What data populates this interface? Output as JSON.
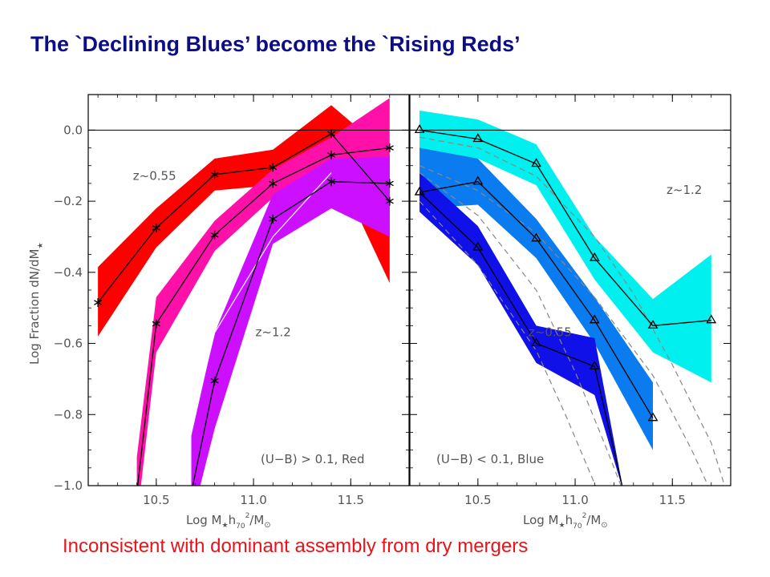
{
  "title": "The `Declining Blues’ become the `Rising Reds’",
  "caption": "Inconsistent with dominant assembly from dry mergers",
  "chart_data": [
    {
      "type": "line",
      "panel": "left",
      "panel_label": "(U−B) > 0.1, Red",
      "xlabel_parts": [
        "Log M",
        "★",
        "h",
        "70",
        "2",
        "/M",
        "⊙"
      ],
      "ylabel_parts": [
        "Log Fraction dN/dM",
        "★"
      ],
      "xlim": [
        10.15,
        11.8
      ],
      "ylim": [
        -1.0,
        0.1
      ],
      "xticks": [
        "10.5",
        "11.0",
        "11.5"
      ],
      "xtick_values": [
        10.5,
        11.0,
        11.5
      ],
      "yticks": [
        "0.0",
        "−0.2",
        "−0.4",
        "−0.6",
        "−0.8",
        "−1.0"
      ],
      "ytick_values": [
        0.0,
        -0.2,
        -0.4,
        -0.6,
        -0.8,
        -1.0
      ],
      "reference_line": 0.0,
      "annotations": [
        {
          "text": "z~0.55",
          "x": 10.38,
          "y": -0.14
        },
        {
          "text": "z~1.2",
          "x": 11.01,
          "y": -0.58
        }
      ],
      "series": [
        {
          "color": "#ff0000",
          "marker": "asterisk",
          "x": [
            10.2,
            10.5,
            10.8,
            11.1,
            11.4,
            11.7
          ],
          "y": [
            -0.485,
            -0.275,
            -0.125,
            -0.105,
            -0.01,
            -0.2
          ],
          "upper": [
            -0.385,
            -0.22,
            -0.08,
            -0.055,
            0.07,
            -0.07
          ],
          "lower": [
            -0.58,
            -0.33,
            -0.17,
            -0.155,
            -0.08,
            -0.43
          ]
        },
        {
          "color": "#ff10a8",
          "marker": "asterisk",
          "x": [
            10.4,
            10.5,
            10.8,
            11.1,
            11.4,
            11.7
          ],
          "y": [
            -1.02,
            -0.545,
            -0.295,
            -0.15,
            -0.07,
            -0.05
          ],
          "upper": [
            -0.92,
            -0.47,
            -0.255,
            -0.11,
            -0.02,
            0.09
          ],
          "lower": [
            -1.1,
            -0.625,
            -0.34,
            -0.19,
            -0.12,
            -0.3
          ]
        },
        {
          "color": "#cc10ff",
          "marker": "asterisk",
          "x": [
            10.68,
            10.8,
            11.1,
            11.4,
            11.7
          ],
          "y": [
            -1.02,
            -0.705,
            -0.25,
            -0.145,
            -0.15
          ],
          "upper": [
            -0.86,
            -0.57,
            -0.18,
            -0.08,
            -0.075
          ],
          "lower": [
            -1.1,
            -0.84,
            -0.32,
            -0.22,
            -0.3
          ]
        }
      ],
      "model_curves": [
        {
          "color": "#ffffff",
          "style": "solid",
          "x": [
            10.6,
            10.8,
            11.1,
            11.4
          ],
          "y": [
            -1.02,
            -0.57,
            -0.3,
            -0.12
          ]
        }
      ]
    },
    {
      "type": "line",
      "panel": "right",
      "panel_label": "(U−B) < 0.1, Blue",
      "xlabel_parts": [
        "Log M",
        "★",
        "h",
        "70",
        "2",
        "/M",
        "⊙"
      ],
      "xlim": [
        10.15,
        11.8
      ],
      "ylim": [
        -1.0,
        0.1
      ],
      "xticks": [
        "10.5",
        "11.0",
        "11.5"
      ],
      "xtick_values": [
        10.5,
        11.0,
        11.5
      ],
      "reference_line": 0.0,
      "annotations": [
        {
          "text": "z~1.2",
          "x": 11.47,
          "y": -0.18
        },
        {
          "text": "z~0.55",
          "x": 10.76,
          "y": -0.58
        }
      ],
      "series": [
        {
          "color": "#00f0f0",
          "marker": "triangle",
          "x": [
            10.2,
            10.5,
            10.8,
            11.1,
            11.4,
            11.7
          ],
          "y": [
            0.0,
            -0.025,
            -0.095,
            -0.36,
            -0.55,
            -0.535
          ],
          "upper": [
            0.055,
            0.03,
            -0.04,
            -0.3,
            -0.475,
            -0.35
          ],
          "lower": [
            -0.055,
            -0.08,
            -0.155,
            -0.42,
            -0.625,
            -0.71
          ]
        },
        {
          "color": "#0a7cf0",
          "marker": "triangle",
          "x": [
            10.2,
            10.5,
            10.8,
            11.1,
            11.4
          ],
          "y": [
            -0.175,
            -0.145,
            -0.305,
            -0.535,
            -0.81
          ],
          "upper": [
            -0.05,
            -0.08,
            -0.25,
            -0.47,
            -0.71
          ],
          "lower": [
            -0.22,
            -0.21,
            -0.36,
            -0.6,
            -0.9
          ]
        },
        {
          "color": "#1010e8",
          "marker": "triangle",
          "x": [
            10.2,
            10.5,
            10.8,
            11.1,
            11.25
          ],
          "y": [
            -0.175,
            -0.33,
            -0.6,
            -0.665,
            -1.02
          ],
          "upper": [
            -0.12,
            -0.27,
            -0.55,
            -0.585,
            -1.02
          ],
          "lower": [
            -0.23,
            -0.38,
            -0.655,
            -0.745,
            -1.02
          ]
        }
      ],
      "model_curves": [
        {
          "color": "#888888",
          "style": "dashed",
          "x": [
            10.2,
            10.5,
            10.8,
            11.1,
            11.3,
            11.5,
            11.7,
            11.78
          ],
          "y": [
            -0.02,
            -0.05,
            -0.13,
            -0.3,
            -0.46,
            -0.66,
            -0.88,
            -1.02
          ]
        },
        {
          "color": "#888888",
          "style": "dashed",
          "x": [
            10.2,
            10.5,
            10.8,
            11.1,
            11.4,
            11.6,
            11.7
          ],
          "y": [
            -0.1,
            -0.17,
            -0.29,
            -0.47,
            -0.69,
            -0.9,
            -1.02
          ]
        },
        {
          "color": "#888888",
          "style": "dashed",
          "x": [
            10.2,
            10.5,
            10.8,
            11.0,
            11.15,
            11.25
          ],
          "y": [
            -0.12,
            -0.24,
            -0.45,
            -0.68,
            -0.88,
            -1.02
          ]
        },
        {
          "color": "#888888",
          "style": "dashed",
          "x": [
            10.2,
            10.5,
            10.8,
            10.95,
            11.05,
            11.12
          ],
          "y": [
            -0.2,
            -0.38,
            -0.62,
            -0.8,
            -0.93,
            -1.02
          ]
        }
      ]
    }
  ]
}
